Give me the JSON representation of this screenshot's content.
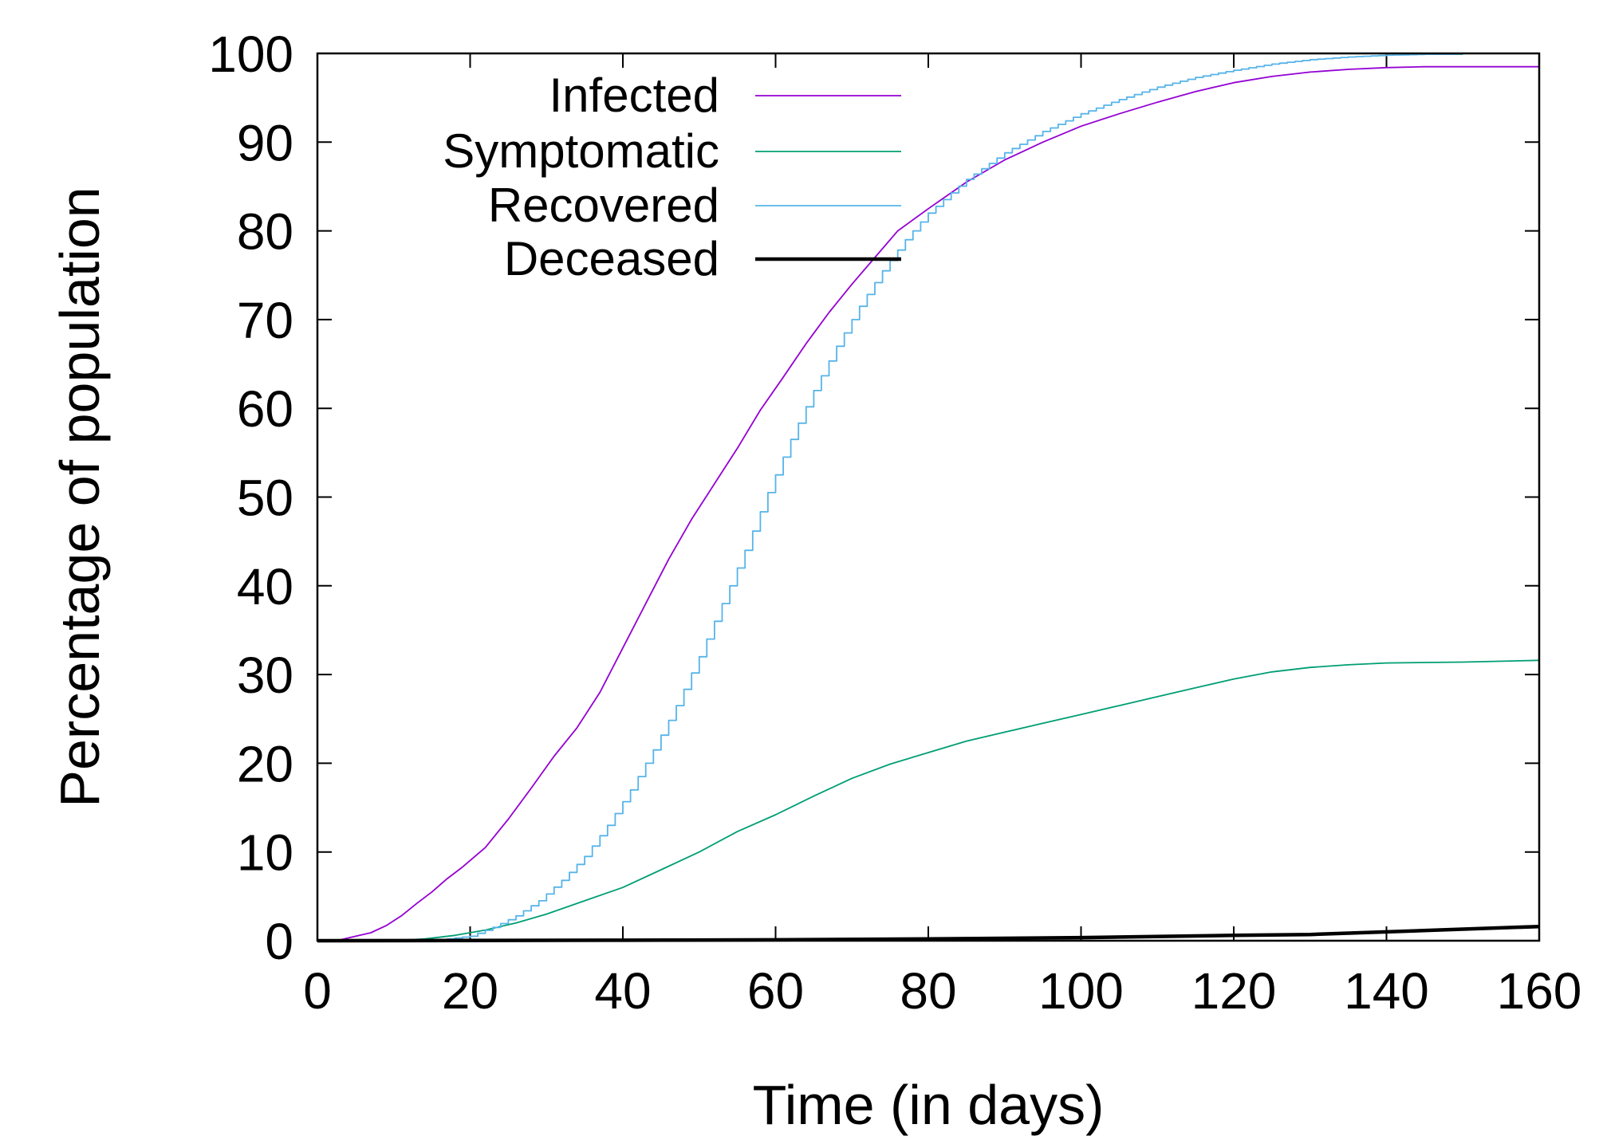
{
  "chart_data": {
    "type": "line",
    "title": "",
    "xlabel": "Time (in days)",
    "ylabel": "Percentage of population",
    "xlim": [
      0,
      160
    ],
    "ylim": [
      0,
      100
    ],
    "x_ticks": [
      0,
      20,
      40,
      60,
      80,
      100,
      120,
      140,
      160
    ],
    "y_ticks": [
      0,
      10,
      20,
      30,
      40,
      50,
      60,
      70,
      80,
      90,
      100
    ],
    "grid": false,
    "legend_position": "top-left",
    "series": [
      {
        "name": "Infected",
        "color": "#9400d3",
        "style": "thin",
        "points": [
          [
            0,
            0
          ],
          [
            3,
            0.1
          ],
          [
            5,
            0.5
          ],
          [
            7,
            0.9
          ],
          [
            9,
            1.7
          ],
          [
            11,
            2.8
          ],
          [
            13,
            4.2
          ],
          [
            15,
            5.5
          ],
          [
            17,
            7.0
          ],
          [
            19,
            8.3
          ],
          [
            22,
            10.5
          ],
          [
            25,
            13.7
          ],
          [
            28,
            17.2
          ],
          [
            31,
            20.8
          ],
          [
            34,
            24.0
          ],
          [
            37,
            28.0
          ],
          [
            40,
            33.0
          ],
          [
            43,
            38.0
          ],
          [
            46,
            43.0
          ],
          [
            49,
            47.5
          ],
          [
            52,
            51.5
          ],
          [
            55,
            55.5
          ],
          [
            58,
            59.8
          ],
          [
            61,
            63.5
          ],
          [
            64,
            67.3
          ],
          [
            67,
            70.8
          ],
          [
            70,
            74.0
          ],
          [
            73,
            77.0
          ],
          [
            76,
            80.0
          ],
          [
            80,
            82.5
          ],
          [
            85,
            85.5
          ],
          [
            90,
            88.0
          ],
          [
            95,
            90.0
          ],
          [
            100,
            91.8
          ],
          [
            105,
            93.2
          ],
          [
            110,
            94.5
          ],
          [
            115,
            95.7
          ],
          [
            120,
            96.7
          ],
          [
            125,
            97.4
          ],
          [
            130,
            97.9
          ],
          [
            135,
            98.2
          ],
          [
            140,
            98.4
          ],
          [
            145,
            98.5
          ],
          [
            150,
            98.5
          ],
          [
            160,
            98.5
          ]
        ]
      },
      {
        "name": "Symptomatic",
        "color": "#009e73",
        "style": "thin",
        "points": [
          [
            0,
            0
          ],
          [
            10,
            0
          ],
          [
            14,
            0.2
          ],
          [
            18,
            0.6
          ],
          [
            22,
            1.2
          ],
          [
            26,
            2.0
          ],
          [
            30,
            3.0
          ],
          [
            35,
            4.5
          ],
          [
            40,
            6.0
          ],
          [
            45,
            8.0
          ],
          [
            50,
            10.0
          ],
          [
            55,
            12.3
          ],
          [
            60,
            14.2
          ],
          [
            65,
            16.3
          ],
          [
            70,
            18.3
          ],
          [
            75,
            19.9
          ],
          [
            80,
            21.2
          ],
          [
            85,
            22.5
          ],
          [
            90,
            23.5
          ],
          [
            95,
            24.5
          ],
          [
            100,
            25.5
          ],
          [
            105,
            26.5
          ],
          [
            110,
            27.5
          ],
          [
            115,
            28.5
          ],
          [
            120,
            29.5
          ],
          [
            125,
            30.3
          ],
          [
            130,
            30.8
          ],
          [
            135,
            31.1
          ],
          [
            140,
            31.3
          ],
          [
            150,
            31.4
          ],
          [
            160,
            31.6
          ]
        ]
      },
      {
        "name": "Recovered",
        "color": "#56b4e9",
        "style": "stairs",
        "points": [
          [
            0,
            0
          ],
          [
            15,
            0
          ],
          [
            20,
            0.5
          ],
          [
            23,
            1.5
          ],
          [
            26,
            2.8
          ],
          [
            29,
            4.5
          ],
          [
            32,
            6.8
          ],
          [
            35,
            9.5
          ],
          [
            38,
            13.0
          ],
          [
            41,
            17.0
          ],
          [
            44,
            21.5
          ],
          [
            47,
            26.5
          ],
          [
            50,
            32.0
          ],
          [
            53,
            38.0
          ],
          [
            56,
            44.0
          ],
          [
            59,
            50.5
          ],
          [
            62,
            56.5
          ],
          [
            65,
            62.0
          ],
          [
            68,
            67.0
          ],
          [
            71,
            71.5
          ],
          [
            74,
            75.5
          ],
          [
            77,
            79.0
          ],
          [
            80,
            82.0
          ],
          [
            85,
            85.8
          ],
          [
            90,
            88.8
          ],
          [
            95,
            91.2
          ],
          [
            100,
            93.2
          ],
          [
            105,
            94.8
          ],
          [
            110,
            96.2
          ],
          [
            115,
            97.3
          ],
          [
            120,
            98.1
          ],
          [
            125,
            98.8
          ],
          [
            130,
            99.3
          ],
          [
            135,
            99.6
          ],
          [
            140,
            99.8
          ],
          [
            145,
            99.9
          ],
          [
            150,
            99.9
          ]
        ]
      },
      {
        "name": "Deceased",
        "color": "#000000",
        "style": "thick",
        "points": [
          [
            0,
            0
          ],
          [
            40,
            0.05
          ],
          [
            60,
            0.1
          ],
          [
            80,
            0.2
          ],
          [
            100,
            0.35
          ],
          [
            120,
            0.6
          ],
          [
            130,
            0.7
          ],
          [
            140,
            1.0
          ],
          [
            150,
            1.3
          ],
          [
            160,
            1.6
          ]
        ]
      }
    ]
  }
}
